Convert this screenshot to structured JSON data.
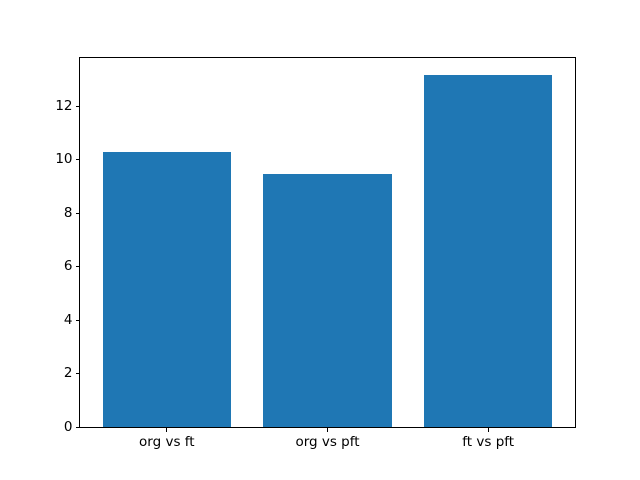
{
  "chart_data": {
    "type": "bar",
    "categories": [
      "org vs ft",
      "org vs pft",
      "ft vs pft"
    ],
    "values": [
      10.3,
      9.45,
      13.15
    ],
    "title": "",
    "xlabel": "",
    "ylabel": "",
    "ylim": [
      0,
      13.8
    ],
    "xlim": [
      -0.54,
      2.54
    ],
    "yticks": [
      0,
      2,
      4,
      6,
      8,
      10,
      12
    ],
    "bar_width_units": 0.8,
    "bar_color": "#1f77b4",
    "spine_color": "#000000",
    "background_color": "#ffffff",
    "grid": false,
    "legend": false
  }
}
